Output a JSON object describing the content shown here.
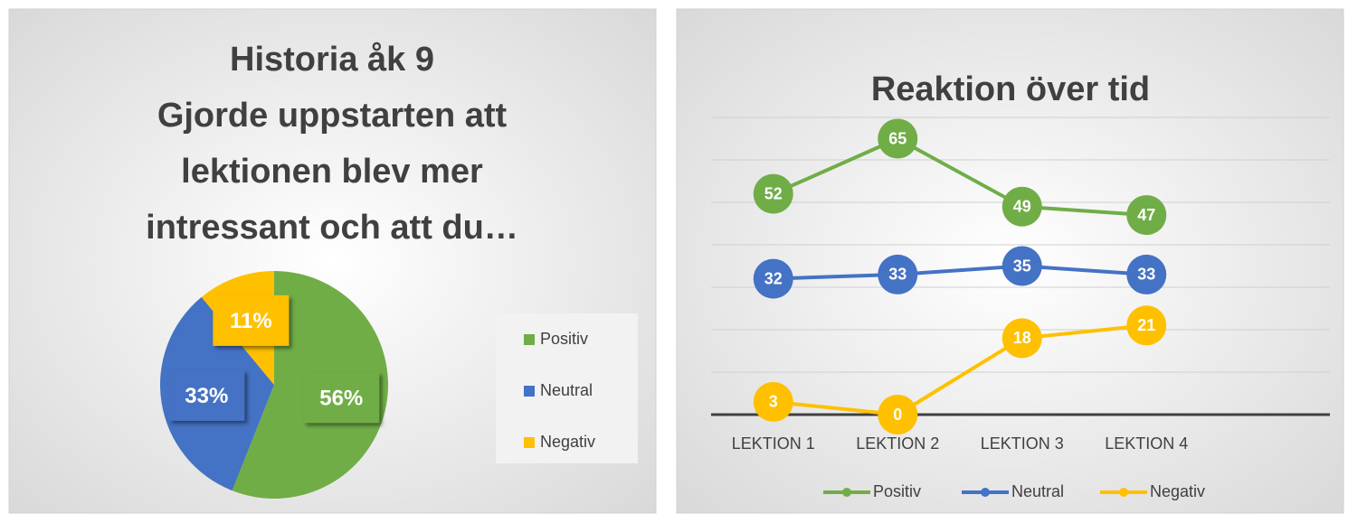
{
  "chart_data": [
    {
      "type": "pie",
      "title": [
        "Historia åk 9",
        "Gjorde uppstarten att",
        "lektionen blev mer",
        "intressant och att du…"
      ],
      "categories": [
        "Positiv",
        "Neutral",
        "Negativ"
      ],
      "values": [
        56,
        33,
        11
      ],
      "value_labels": [
        "56%",
        "33%",
        "11%"
      ],
      "colors": [
        "#70ad47",
        "#4472c4",
        "#ffc000"
      ],
      "legend": "right"
    },
    {
      "type": "line",
      "title": "Reaktion över tid",
      "categories": [
        "LEKTION 1",
        "LEKTION 2",
        "LEKTION 3",
        "LEKTION 4"
      ],
      "series": [
        {
          "name": "Positiv",
          "color": "#70ad47",
          "values": [
            52,
            65,
            49,
            47
          ]
        },
        {
          "name": "Neutral",
          "color": "#4472c4",
          "values": [
            32,
            33,
            35,
            33
          ]
        },
        {
          "name": "Negativ",
          "color": "#ffc000",
          "values": [
            3,
            0,
            18,
            21
          ]
        }
      ],
      "ylim": [
        0,
        70
      ],
      "yticks": [
        0,
        10,
        20,
        30,
        40,
        50,
        60,
        70
      ],
      "grid": true,
      "legend": "bottom"
    }
  ]
}
